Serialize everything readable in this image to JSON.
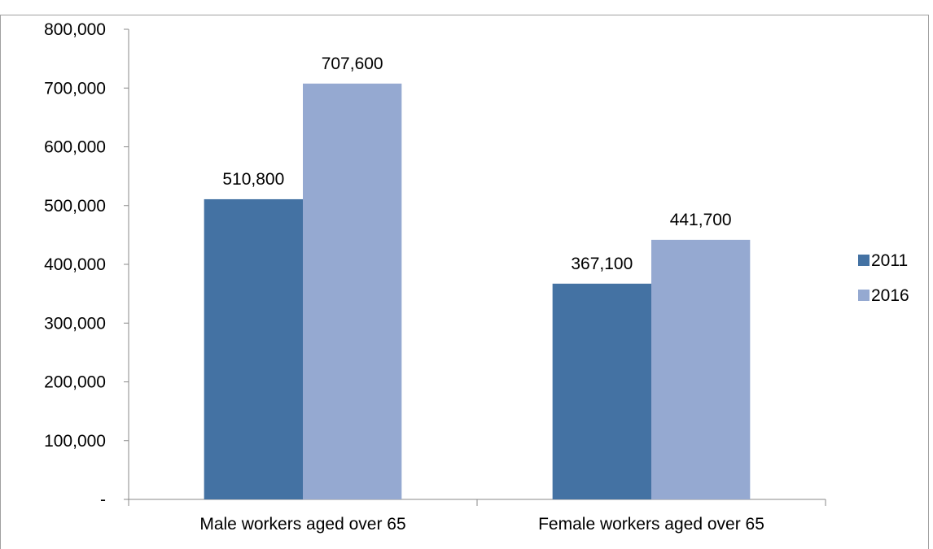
{
  "chart_data": {
    "type": "bar",
    "title": "",
    "categories": [
      "Male workers aged over 65",
      "Female workers aged over 65"
    ],
    "series": [
      {
        "name": "2011",
        "values": [
          510800,
          367100
        ],
        "color": "#4472a3"
      },
      {
        "name": "2016",
        "values": [
          707600,
          441700
        ],
        "color": "#95a9d1"
      }
    ],
    "data_labels": [
      [
        "510,800",
        "367,100"
      ],
      [
        "707,600",
        "441,700"
      ]
    ],
    "ylim": [
      0,
      800000
    ],
    "y_ticks": [
      0,
      100000,
      200000,
      300000,
      400000,
      500000,
      600000,
      700000,
      800000
    ],
    "y_tick_labels": [
      "-",
      "100,000",
      "200,000",
      "300,000",
      "400,000",
      "500,000",
      "600,000",
      "700,000",
      "800,000"
    ],
    "xlabel": "",
    "ylabel": "",
    "grid": false,
    "legend": "right"
  }
}
